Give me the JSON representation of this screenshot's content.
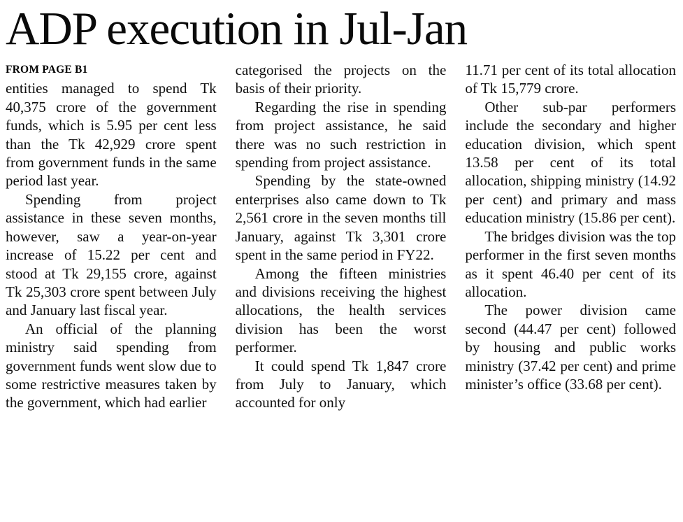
{
  "article": {
    "headline": "ADP execution in Jul-Jan",
    "kicker": "FROM PAGE B1",
    "columns": [
      {
        "paragraphs": [
          "entities managed to spend Tk 40,375 crore of the government funds, which is 5.95 per cent less than the Tk 42,929 crore spent from government funds in the same period last year.",
          "Spending from project assistance in these seven months, however, saw a year-on-year increase of 15.22 per cent and stood at Tk 29,155 crore, against Tk 25,303 crore spent between July and January last fiscal year.",
          "An official of the planning ministry said spending from government funds went slow due to some restrictive measures taken by the government, which had earlier"
        ]
      },
      {
        "paragraphs": [
          "categorised the projects on the basis of their priority.",
          "Regarding the rise in spending from project assistance, he said there was no such restriction in spending from project assistance.",
          "Spending by the state-owned enterprises also came down to Tk 2,561 crore in the seven months till January, against Tk 3,301 crore spent in the same period in FY22.",
          "Among the fifteen ministries and divisions receiving the highest allocations, the health services division has been the worst performer.",
          "It could spend Tk 1,847 crore from July to January, which accounted for only"
        ]
      },
      {
        "paragraphs": [
          "11.71 per cent of its total allocation of Tk 15,779 crore.",
          "Other sub-par performers include the secondary and higher education division, which spent 13.58 per cent of its total allocation, shipping ministry (14.92 per cent) and primary and mass education ministry (15.86 per cent).",
          "The bridges division was the top performer in the first seven months as it spent 46.40 per cent of its allocation.",
          "The power division came second (44.47 per cent) followed by housing and public works ministry (37.42 per cent) and prime minister’s office (33.68 per cent)."
        ]
      }
    ]
  }
}
